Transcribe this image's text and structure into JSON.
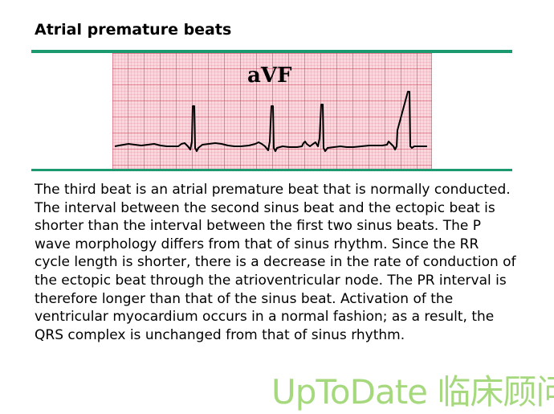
{
  "title": "Atrial premature beats",
  "ecg": {
    "lead_label": "aVF",
    "grid_colors": {
      "background": "#fbd6dc",
      "minor": "#f07c95",
      "major": "#d0324f"
    },
    "trace_color": "#000000"
  },
  "caption": "The third beat is an atrial premature beat that is normally conducted. The interval between the second sinus beat and the ectopic beat is shorter than the interval between the first two sinus beats. The P wave morphology differs from that of sinus rhythm. Since the RR cycle length is shorter, there is a decrease in the rate of conduction of the ectopic beat through the atrioventricular node. The PR interval is therefore longer than that of the sinus beat. Activation of the ventricular myocardium occurs in a normal fashion; as a result, the QRS complex is unchanged from that of sinus rhythm.",
  "watermark": "UpToDate 临床顾问",
  "accent_color": "#1a9a6e"
}
